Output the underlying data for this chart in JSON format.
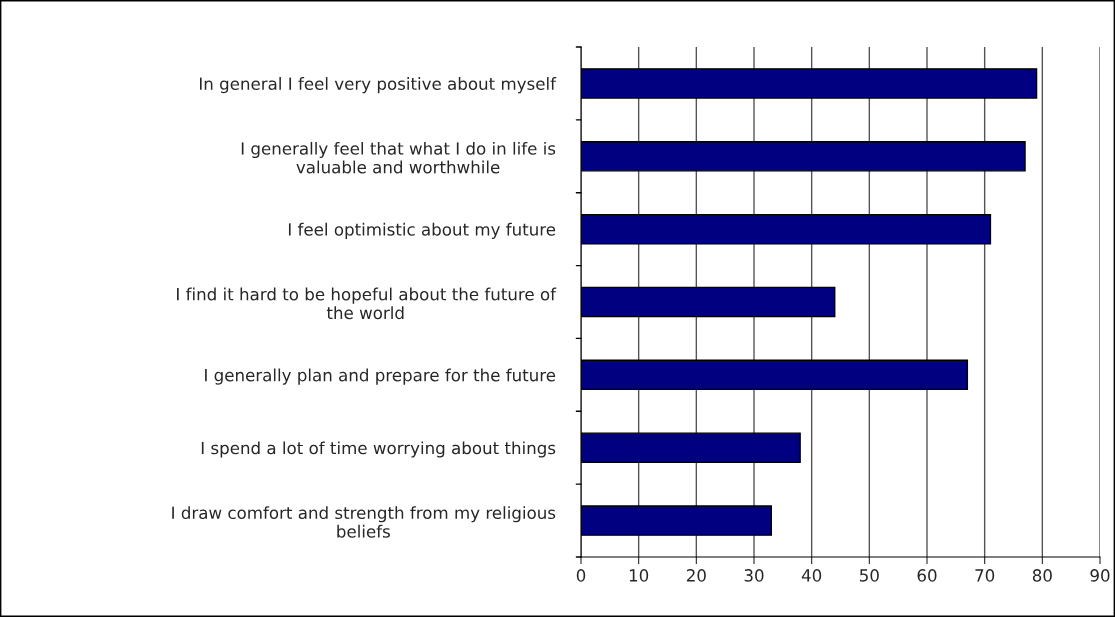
{
  "chart_data": {
    "type": "bar",
    "orientation": "horizontal",
    "categories": [
      "In general I feel very positive about myself",
      "I generally feel that what I do in life is\nvaluable and worthwhile",
      "I feel optimistic about my future",
      "I find it hard to be hopeful about the future of\nthe world",
      "I generally plan and prepare for the future",
      "I spend a lot of time worrying about things",
      "I draw comfort and strength from my religious\nbeliefs"
    ],
    "values": [
      79,
      77,
      71,
      44,
      67,
      38,
      33
    ],
    "color": "#000080",
    "xlim": [
      0,
      90
    ],
    "xticks": [
      0,
      10,
      20,
      30,
      40,
      50,
      60,
      70,
      80,
      90
    ],
    "grid": "x",
    "legend": false
  }
}
